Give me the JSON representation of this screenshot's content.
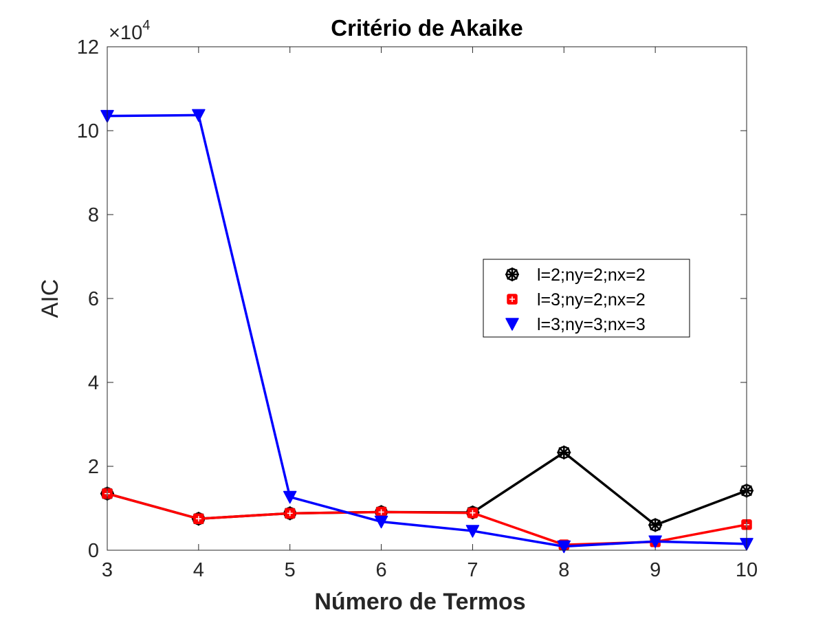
{
  "chart_data": {
    "type": "line",
    "title": "Critério de Akaike",
    "xlabel": "Número de Termos",
    "ylabel": "AIC",
    "y_exponent_label": {
      "base": "×10",
      "power": "4"
    },
    "xlim": [
      3,
      10
    ],
    "ylim": [
      0,
      12
    ],
    "y_scale_factor": 10000,
    "x_ticks": [
      3,
      4,
      5,
      6,
      7,
      8,
      9,
      10
    ],
    "y_ticks": [
      0,
      2,
      4,
      6,
      8,
      10,
      12
    ],
    "x": [
      3,
      4,
      5,
      6,
      7,
      8,
      9,
      10
    ],
    "grid": false,
    "legend_position": "right",
    "series": [
      {
        "name": "l=2;ny=2;nx=2",
        "color": "#000000",
        "marker": "asterisk-circle",
        "values": [
          1.35,
          0.75,
          0.88,
          0.91,
          0.9,
          2.33,
          0.6,
          1.42
        ]
      },
      {
        "name": "l=3;ny=2;nx=2",
        "color": "#ff0000",
        "marker": "square-plus",
        "values": [
          1.35,
          0.75,
          0.88,
          0.91,
          0.89,
          0.13,
          0.2,
          0.61
        ]
      },
      {
        "name": "l=3;ny=3;nx=3",
        "color": "#0000ff",
        "marker": "triangle-down",
        "values": [
          10.35,
          10.37,
          1.27,
          0.68,
          0.46,
          0.09,
          0.21,
          0.15
        ]
      }
    ]
  }
}
